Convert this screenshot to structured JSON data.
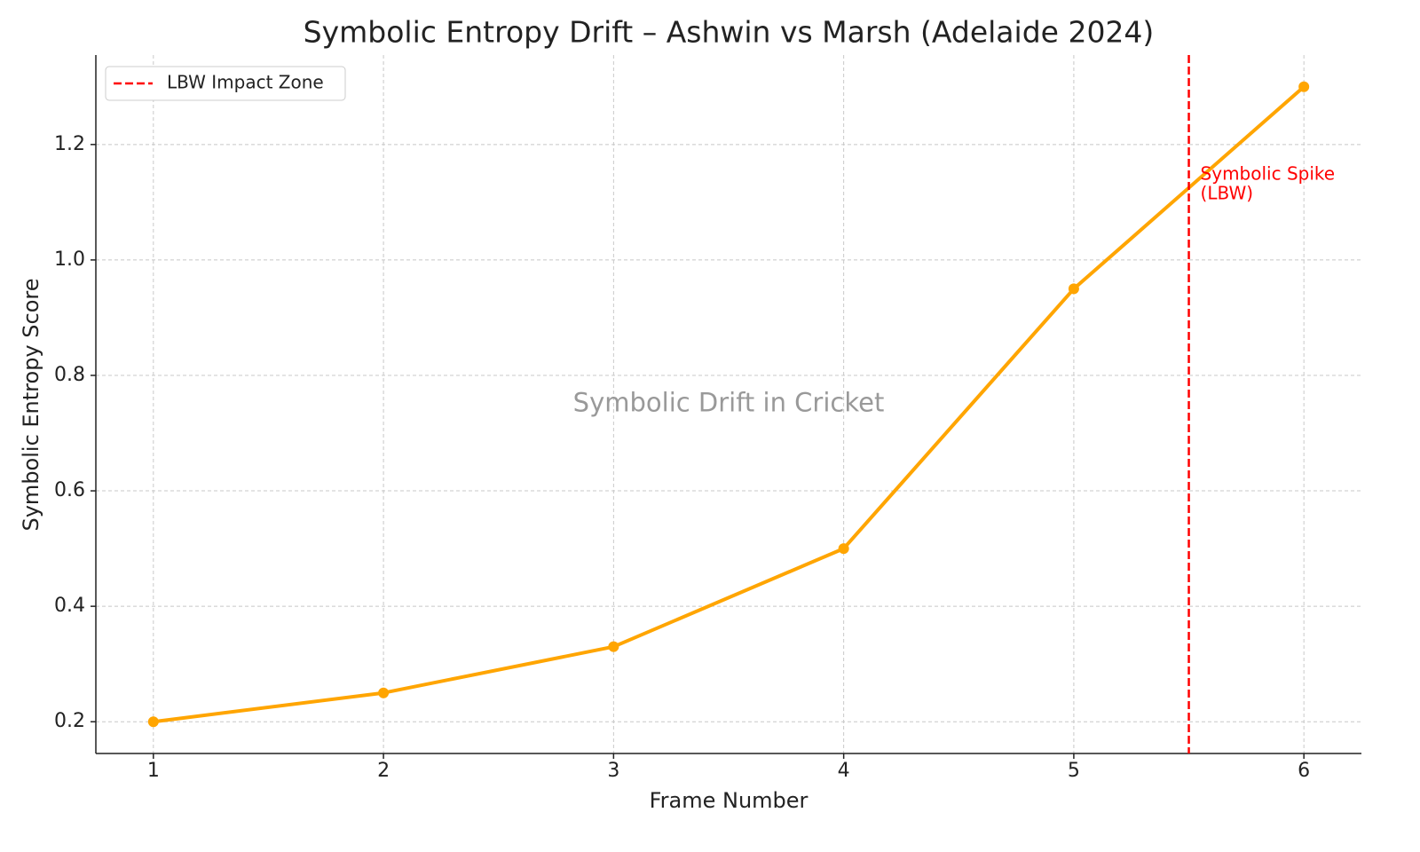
{
  "chart_data": {
    "type": "line",
    "title": "Symbolic Entropy Drift – Ashwin vs Marsh (Adelaide 2024)",
    "xlabel": "Frame Number",
    "ylabel": "Symbolic Entropy Score",
    "watermark": "Symbolic Drift in Cricket",
    "x": [
      1,
      2,
      3,
      4,
      5,
      6
    ],
    "values": [
      0.2,
      0.25,
      0.33,
      0.5,
      0.95,
      1.3
    ],
    "color": "#ffa500",
    "xlim": [
      0.75,
      6.25
    ],
    "ylim": [
      0.145,
      1.355
    ],
    "xticks": [
      1,
      2,
      3,
      4,
      5,
      6
    ],
    "yticks": [
      0.2,
      0.4,
      0.6,
      0.8,
      {
        "value": 1,
        "label": "1.0"
      },
      1.2
    ],
    "grid": true,
    "vlines": [
      {
        "x": 5.5,
        "label": "LBW Impact Zone",
        "color": "#ff0000"
      }
    ],
    "annotation": [
      "Symbolic Spike",
      "(LBW)"
    ],
    "legend": "upper left"
  }
}
